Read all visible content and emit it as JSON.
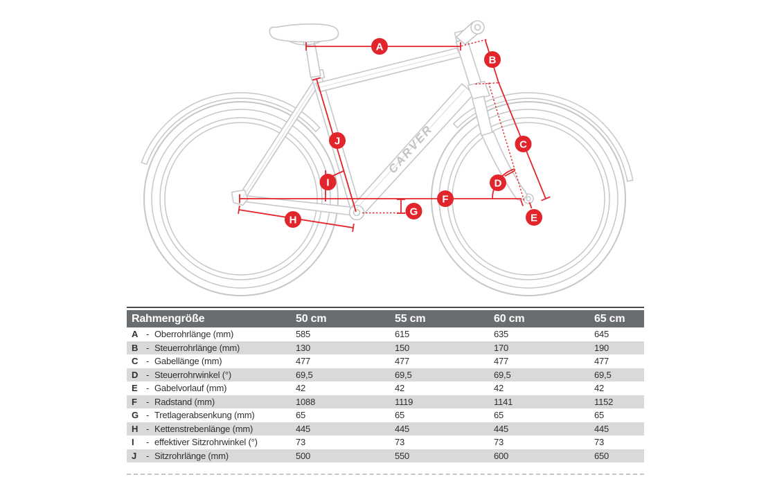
{
  "diagram": {
    "brand": "CARVER",
    "markers": [
      "A",
      "B",
      "C",
      "D",
      "E",
      "F",
      "G",
      "H",
      "I",
      "J"
    ]
  },
  "table": {
    "top_left_header": "Rahmengröße",
    "size_headers": [
      "50 cm",
      "55 cm",
      "60 cm",
      "65 cm"
    ],
    "key_separator": "-",
    "rows": [
      {
        "key": "A",
        "label": "Oberrohrlänge (mm)",
        "values": [
          "585",
          "615",
          "635",
          "645"
        ]
      },
      {
        "key": "B",
        "label": "Steuerrohrlänge (mm)",
        "values": [
          "130",
          "150",
          "170",
          "190"
        ]
      },
      {
        "key": "C",
        "label": "Gabellänge (mm)",
        "values": [
          "477",
          "477",
          "477",
          "477"
        ]
      },
      {
        "key": "D",
        "label": "Steuerrohrwinkel (°)",
        "values": [
          "69,5",
          "69,5",
          "69,5",
          "69,5"
        ]
      },
      {
        "key": "E",
        "label": "Gabelvorlauf (mm)",
        "values": [
          "42",
          "42",
          "42",
          "42"
        ]
      },
      {
        "key": "F",
        "label": "Radstand (mm)",
        "values": [
          "1088",
          "1119",
          "1141",
          "1152"
        ]
      },
      {
        "key": "G",
        "label": "Tretlagerabsenkung (mm)",
        "values": [
          "65",
          "65",
          "65",
          "65"
        ]
      },
      {
        "key": "H",
        "label": "Kettenstrebenlänge (mm)",
        "values": [
          "445",
          "445",
          "445",
          "445"
        ]
      },
      {
        "key": "I",
        "label": "effektiver Sitzrohrwinkel (°)",
        "values": [
          "73",
          "73",
          "73",
          "73"
        ]
      },
      {
        "key": "J",
        "label": "Sitzrohrlänge (mm)",
        "values": [
          "500",
          "550",
          "600",
          "650"
        ]
      }
    ]
  },
  "colors": {
    "accent_red": "#e2242b",
    "header_bg": "#6a6d70",
    "alt_row_bg": "#d9d9d9",
    "line_gray": "#c5c7c9"
  }
}
